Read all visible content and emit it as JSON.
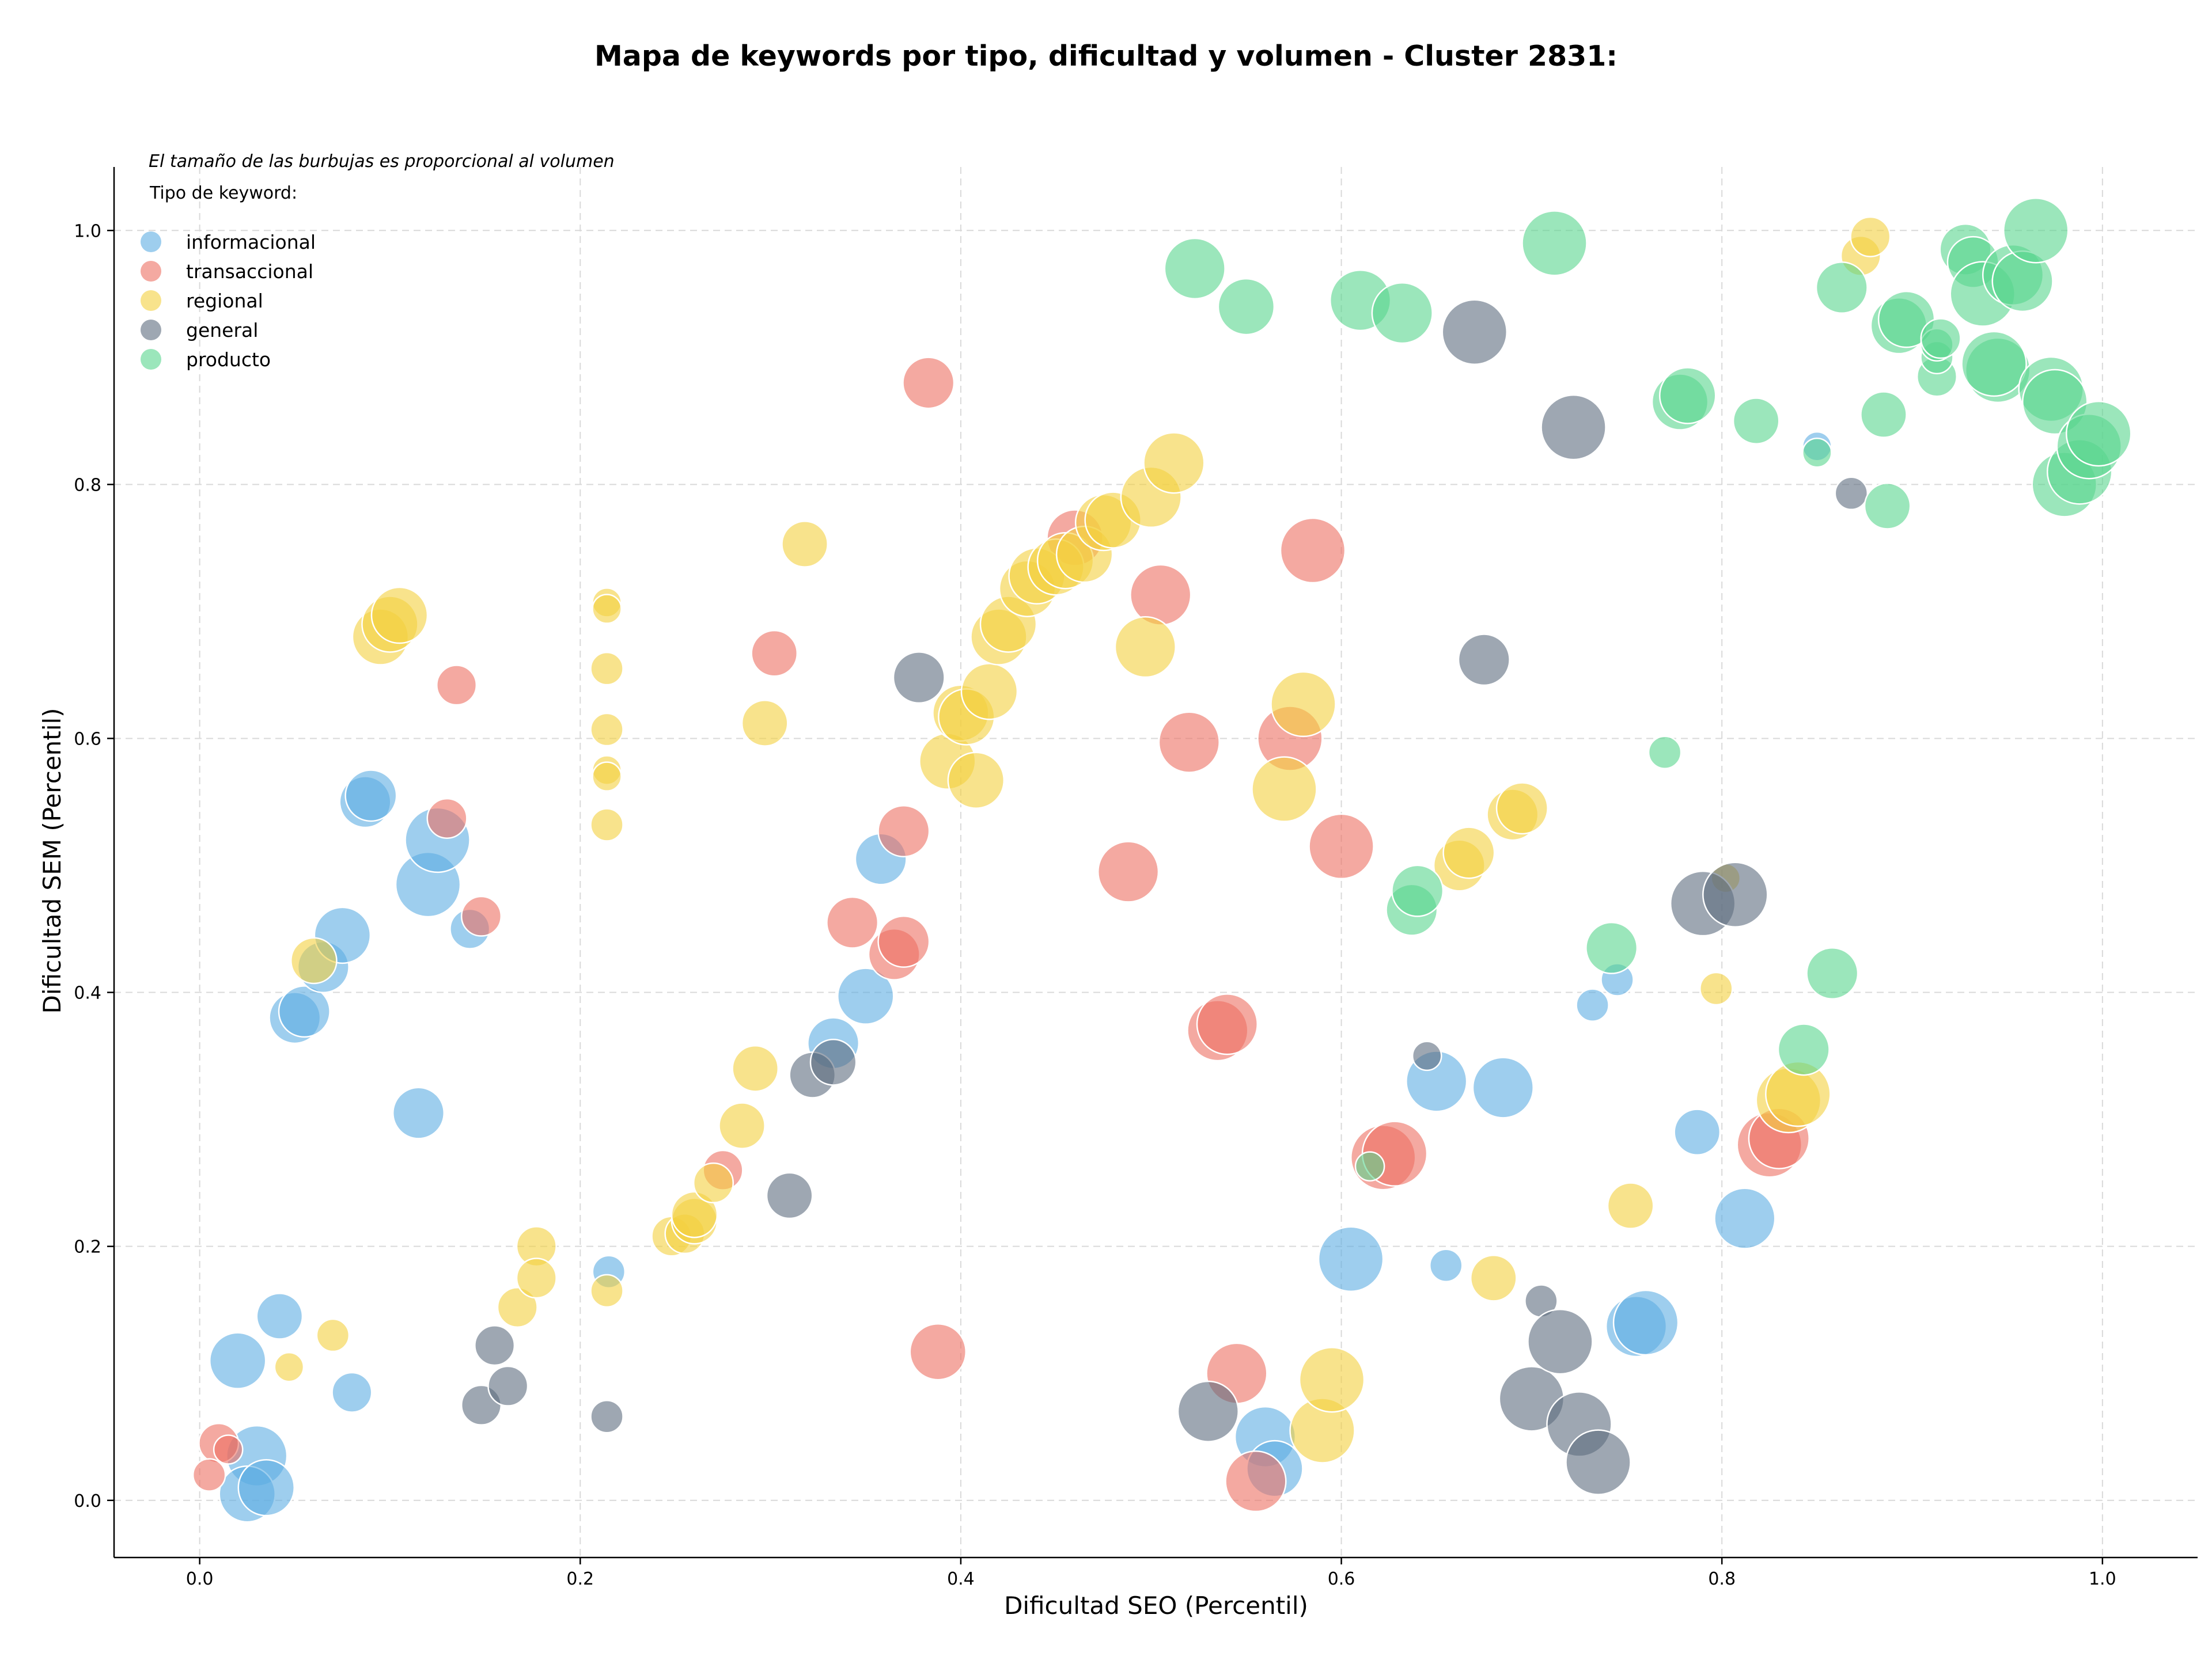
{
  "chart_data": {
    "type": "scatter",
    "title": "Mapa de keywords por tipo, dificultad y volumen - Cluster 2831:",
    "xlabel": "Dificultad SEO (Percentil)",
    "ylabel": "Dificultad SEM (Percentil)",
    "xlim": [
      -0.045,
      1.05
    ],
    "ylim": [
      -0.045,
      1.05
    ],
    "xticks": [
      "0.0",
      "0.2",
      "0.4",
      "0.6",
      "0.8",
      "1.0"
    ],
    "yticks": [
      "0.0",
      "0.2",
      "0.4",
      "0.6",
      "0.8",
      "1.0"
    ],
    "grid": true,
    "note": "El tamaño de las burbujas es proporcional al volumen",
    "legend": {
      "title": "Tipo de keyword:",
      "placement": "top-left"
    },
    "series": [
      {
        "name": "informacional",
        "color": "#5DADE2",
        "points": [
          [
            0.02,
            0.11,
            3
          ],
          [
            0.042,
            0.145,
            2
          ],
          [
            0.03,
            0.035,
            3.5
          ],
          [
            0.025,
            0.005,
            3
          ],
          [
            0.035,
            0.01,
            3
          ],
          [
            0.08,
            0.085,
            1.5
          ],
          [
            0.05,
            0.38,
            2.5
          ],
          [
            0.055,
            0.385,
            2.5
          ],
          [
            0.065,
            0.42,
            2.5
          ],
          [
            0.075,
            0.445,
            3
          ],
          [
            0.087,
            0.55,
            2.5
          ],
          [
            0.09,
            0.555,
            2.5
          ],
          [
            0.115,
            0.305,
            2.5
          ],
          [
            0.12,
            0.485,
            4
          ],
          [
            0.125,
            0.52,
            4
          ],
          [
            0.142,
            0.45,
            1.5
          ],
          [
            0.215,
            0.18,
            1
          ],
          [
            0.358,
            0.505,
            2.5
          ],
          [
            0.35,
            0.397,
            3
          ],
          [
            0.333,
            0.36,
            2.5
          ],
          [
            0.605,
            0.19,
            4
          ],
          [
            0.65,
            0.33,
            3.5
          ],
          [
            0.685,
            0.325,
            3.5
          ],
          [
            0.655,
            0.185,
            1
          ],
          [
            0.56,
            0.05,
            3.5
          ],
          [
            0.565,
            0.025,
            3
          ],
          [
            0.732,
            0.39,
            1
          ],
          [
            0.745,
            0.41,
            1
          ],
          [
            0.787,
            0.29,
            2
          ],
          [
            0.812,
            0.222,
            3.5
          ],
          [
            0.755,
            0.137,
            3.5
          ],
          [
            0.76,
            0.14,
            4
          ],
          [
            0.85,
            0.83,
            0.8
          ]
        ]
      },
      {
        "name": "transaccional",
        "color": "#EC7063",
        "points": [
          [
            0.01,
            0.045,
            1.5
          ],
          [
            0.015,
            0.04,
            0.8
          ],
          [
            0.005,
            0.02,
            1
          ],
          [
            0.135,
            0.642,
            1.5
          ],
          [
            0.13,
            0.537,
            1.5
          ],
          [
            0.148,
            0.46,
            1.5
          ],
          [
            0.275,
            0.26,
            1.5
          ],
          [
            0.302,
            0.667,
            2
          ],
          [
            0.343,
            0.455,
            2.5
          ],
          [
            0.365,
            0.43,
            2.5
          ],
          [
            0.37,
            0.44,
            2.5
          ],
          [
            0.37,
            0.527,
            2.5
          ],
          [
            0.383,
            0.88,
            2.5
          ],
          [
            0.388,
            0.117,
            3
          ],
          [
            0.46,
            0.758,
            3
          ],
          [
            0.505,
            0.713,
            3.5
          ],
          [
            0.488,
            0.495,
            3.5
          ],
          [
            0.52,
            0.597,
            3.5
          ],
          [
            0.535,
            0.37,
            3.5
          ],
          [
            0.54,
            0.375,
            3.5
          ],
          [
            0.545,
            0.1,
            3.5
          ],
          [
            0.555,
            0.015,
            3.5
          ],
          [
            0.573,
            0.6,
            4
          ],
          [
            0.585,
            0.748,
            4
          ],
          [
            0.6,
            0.515,
            4
          ],
          [
            0.622,
            0.27,
            4
          ],
          [
            0.628,
            0.273,
            4
          ],
          [
            0.825,
            0.28,
            4
          ],
          [
            0.83,
            0.285,
            3.5
          ]
        ]
      },
      {
        "name": "regional",
        "color": "#F4D03F",
        "points": [
          [
            0.047,
            0.105,
            0.8
          ],
          [
            0.07,
            0.13,
            1
          ],
          [
            0.06,
            0.425,
            2
          ],
          [
            0.095,
            0.68,
            3
          ],
          [
            0.1,
            0.69,
            3
          ],
          [
            0.105,
            0.697,
            3
          ],
          [
            0.167,
            0.152,
            1.5
          ],
          [
            0.177,
            0.2,
            1.5
          ],
          [
            0.177,
            0.175,
            1.5
          ],
          [
            0.214,
            0.707,
            0.8
          ],
          [
            0.214,
            0.702,
            0.8
          ],
          [
            0.214,
            0.655,
            1
          ],
          [
            0.214,
            0.607,
            1
          ],
          [
            0.214,
            0.575,
            0.8
          ],
          [
            0.214,
            0.57,
            0.8
          ],
          [
            0.214,
            0.532,
            1
          ],
          [
            0.214,
            0.165,
            1
          ],
          [
            0.248,
            0.208,
            1.5
          ],
          [
            0.255,
            0.21,
            1.5
          ],
          [
            0.26,
            0.22,
            2
          ],
          [
            0.26,
            0.225,
            2
          ],
          [
            0.27,
            0.25,
            1.5
          ],
          [
            0.285,
            0.295,
            2
          ],
          [
            0.292,
            0.34,
            2
          ],
          [
            0.297,
            0.612,
            2
          ],
          [
            0.318,
            0.753,
            2
          ],
          [
            0.393,
            0.582,
            3
          ],
          [
            0.4,
            0.62,
            3
          ],
          [
            0.403,
            0.617,
            3
          ],
          [
            0.408,
            0.567,
            3
          ],
          [
            0.415,
            0.637,
            3
          ],
          [
            0.42,
            0.68,
            3
          ],
          [
            0.425,
            0.69,
            3
          ],
          [
            0.435,
            0.718,
            3
          ],
          [
            0.44,
            0.728,
            3
          ],
          [
            0.45,
            0.735,
            3
          ],
          [
            0.455,
            0.74,
            3
          ],
          [
            0.465,
            0.745,
            3
          ],
          [
            0.475,
            0.77,
            3
          ],
          [
            0.48,
            0.772,
            3
          ],
          [
            0.497,
            0.672,
            3.5
          ],
          [
            0.5,
            0.79,
            3.5
          ],
          [
            0.512,
            0.817,
            3.5
          ],
          [
            0.57,
            0.56,
            4
          ],
          [
            0.58,
            0.627,
            4
          ],
          [
            0.59,
            0.055,
            4
          ],
          [
            0.595,
            0.095,
            4
          ],
          [
            0.662,
            0.5,
            2.5
          ],
          [
            0.667,
            0.51,
            2.5
          ],
          [
            0.68,
            0.175,
            2
          ],
          [
            0.69,
            0.54,
            2.5
          ],
          [
            0.695,
            0.545,
            2.5
          ],
          [
            0.752,
            0.232,
            2
          ],
          [
            0.797,
            0.403,
            1
          ],
          [
            0.802,
            0.49,
            0.8
          ],
          [
            0.835,
            0.315,
            4
          ],
          [
            0.84,
            0.32,
            4
          ],
          [
            0.873,
            0.98,
            1.5
          ],
          [
            0.878,
            0.995,
            1.5
          ]
        ]
      },
      {
        "name": "general",
        "color": "#5D6D7E",
        "points": [
          [
            0.148,
            0.075,
            1.5
          ],
          [
            0.155,
            0.122,
            1.5
          ],
          [
            0.162,
            0.09,
            1.5
          ],
          [
            0.214,
            0.066,
            1
          ],
          [
            0.31,
            0.24,
            2
          ],
          [
            0.322,
            0.335,
            2
          ],
          [
            0.333,
            0.345,
            2
          ],
          [
            0.378,
            0.648,
            2.5
          ],
          [
            0.53,
            0.07,
            3.5
          ],
          [
            0.645,
            0.35,
            0.8
          ],
          [
            0.675,
            0.662,
            2.5
          ],
          [
            0.67,
            0.92,
            4
          ],
          [
            0.7,
            0.08,
            4
          ],
          [
            0.705,
            0.157,
            1
          ],
          [
            0.715,
            0.125,
            4
          ],
          [
            0.722,
            0.845,
            4
          ],
          [
            0.725,
            0.06,
            4
          ],
          [
            0.735,
            0.03,
            4
          ],
          [
            0.79,
            0.47,
            4
          ],
          [
            0.807,
            0.477,
            4
          ],
          [
            0.868,
            0.793,
            1
          ]
        ]
      },
      {
        "name": "producto",
        "color": "#58D68D",
        "points": [
          [
            0.523,
            0.97,
            3.5
          ],
          [
            0.55,
            0.94,
            3
          ],
          [
            0.61,
            0.945,
            3.5
          ],
          [
            0.632,
            0.935,
            3.5
          ],
          [
            0.615,
            0.263,
            0.8
          ],
          [
            0.637,
            0.465,
            2.5
          ],
          [
            0.64,
            0.48,
            2.5
          ],
          [
            0.712,
            0.99,
            4
          ],
          [
            0.742,
            0.435,
            2.5
          ],
          [
            0.77,
            0.589,
            1
          ],
          [
            0.778,
            0.865,
            3
          ],
          [
            0.782,
            0.87,
            3
          ],
          [
            0.818,
            0.85,
            2
          ],
          [
            0.843,
            0.355,
            2.5
          ],
          [
            0.85,
            0.825,
            0.8
          ],
          [
            0.858,
            0.415,
            2.5
          ],
          [
            0.863,
            0.955,
            2.5
          ],
          [
            0.885,
            0.855,
            2
          ],
          [
            0.887,
            0.783,
            2
          ],
          [
            0.893,
            0.925,
            3
          ],
          [
            0.897,
            0.93,
            3
          ],
          [
            0.913,
            0.885,
            1.5
          ],
          [
            0.913,
            0.9,
            1
          ],
          [
            0.913,
            0.91,
            1
          ],
          [
            0.915,
            0.915,
            1.5
          ],
          [
            0.928,
            0.985,
            2.5
          ],
          [
            0.932,
            0.975,
            2.5
          ],
          [
            0.937,
            0.95,
            4
          ],
          [
            0.945,
            0.89,
            4
          ],
          [
            0.943,
            0.895,
            4
          ],
          [
            0.953,
            0.965,
            3.5
          ],
          [
            0.958,
            0.96,
            3.5
          ],
          [
            0.965,
            1.0,
            4
          ],
          [
            0.973,
            0.875,
            4
          ],
          [
            0.975,
            0.865,
            4
          ],
          [
            0.98,
            0.8,
            4
          ],
          [
            0.988,
            0.81,
            4
          ],
          [
            0.993,
            0.83,
            4
          ],
          [
            0.998,
            0.84,
            4
          ]
        ]
      }
    ]
  }
}
